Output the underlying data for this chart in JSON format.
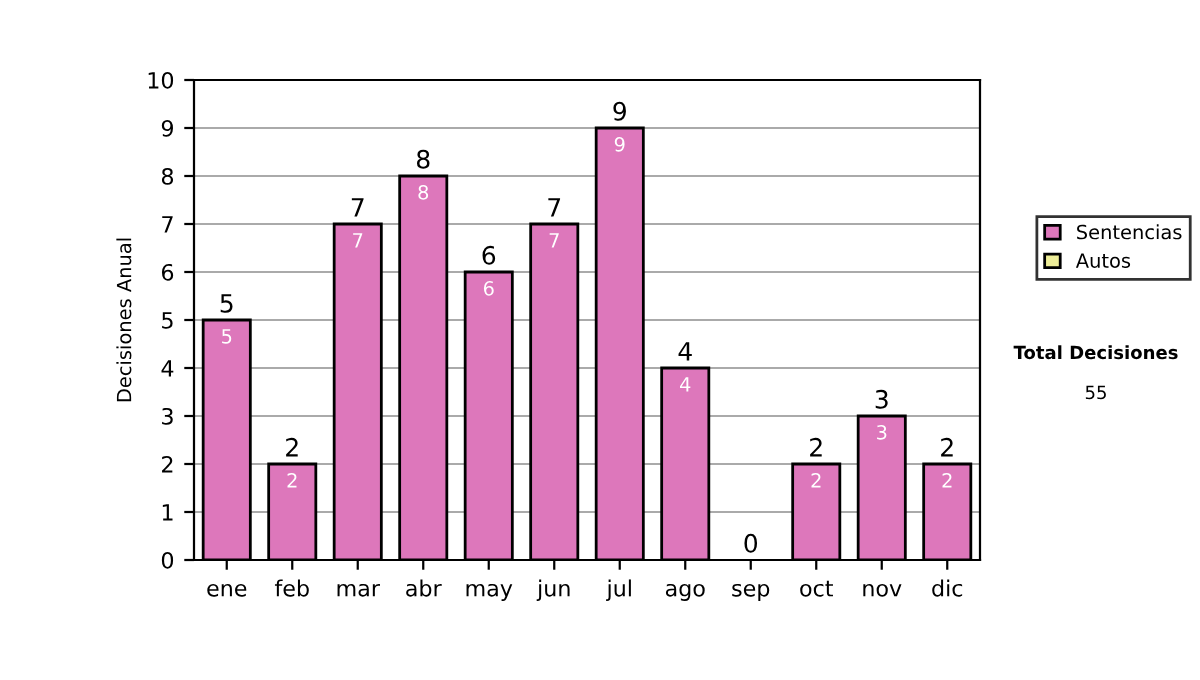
{
  "chart_data": {
    "type": "bar",
    "stacked": true,
    "ylabel": "Decisiones Anual",
    "categories": [
      "ene",
      "feb",
      "mar",
      "abr",
      "may",
      "jun",
      "jul",
      "ago",
      "sep",
      "oct",
      "nov",
      "dic"
    ],
    "series": [
      {
        "name": "Sentencias",
        "color": "#dd77bb",
        "values": [
          5,
          2,
          7,
          8,
          6,
          7,
          9,
          4,
          0,
          2,
          3,
          2
        ],
        "value_labels": [
          "5",
          "2",
          "7",
          "8",
          "6",
          "7",
          "9",
          "4",
          null,
          "2",
          "3",
          "2"
        ]
      },
      {
        "name": "Autos",
        "color": "#eeee99",
        "values": [
          0,
          0,
          0,
          0,
          0,
          0,
          0,
          0,
          0,
          0,
          0,
          0
        ]
      }
    ],
    "totals": [
      "5",
      "2",
      "7",
      "8",
      "6",
      "7",
      "9",
      "4",
      "0",
      "2",
      "3",
      "2"
    ],
    "ylim": [
      0,
      10
    ],
    "yticks": [
      0,
      1,
      2,
      3,
      4,
      5,
      6,
      7,
      8,
      9,
      10
    ],
    "grid": "y",
    "legend": "right",
    "annotations": [
      "Total Decisiones",
      "55"
    ]
  }
}
